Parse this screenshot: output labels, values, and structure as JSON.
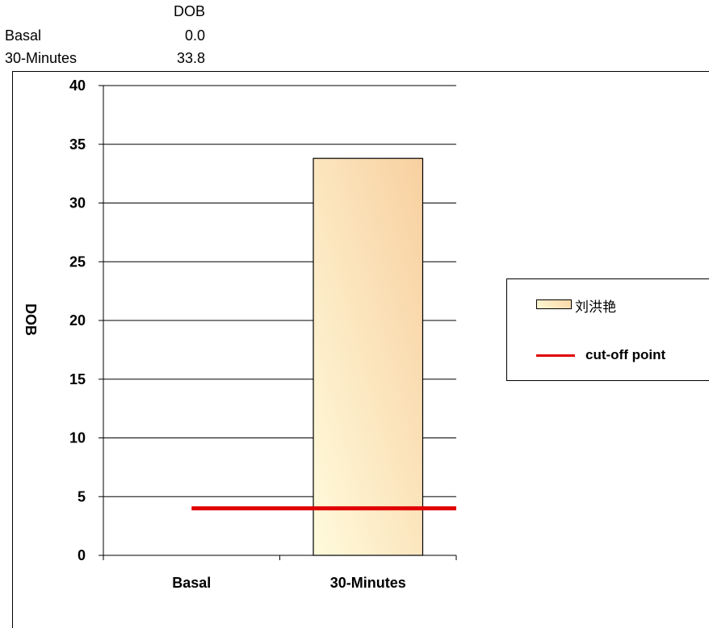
{
  "table": {
    "header": "DOB",
    "rows": [
      {
        "label": "Basal",
        "value": "0.0"
      },
      {
        "label": "30-Minutes",
        "value": "33.8"
      }
    ]
  },
  "legend": {
    "series_label": "刘洪艳",
    "cutoff_label": "cut-off point"
  },
  "chart_data": {
    "type": "bar",
    "categories": [
      "Basal",
      "30-Minutes"
    ],
    "series": [
      {
        "name": "刘洪艳",
        "values": [
          0.0,
          33.8
        ]
      }
    ],
    "reference_line": {
      "name": "cut-off point",
      "value": 4,
      "color": "#e00000"
    },
    "ylabel": "DOB",
    "xlabel": "",
    "ylim": [
      0,
      40
    ],
    "yticks": [
      0,
      5,
      10,
      15,
      20,
      25,
      30,
      35,
      40
    ],
    "grid": true,
    "legend_position": "right",
    "bar_fill": [
      "#fff8d4",
      "#f9d8a8"
    ]
  }
}
